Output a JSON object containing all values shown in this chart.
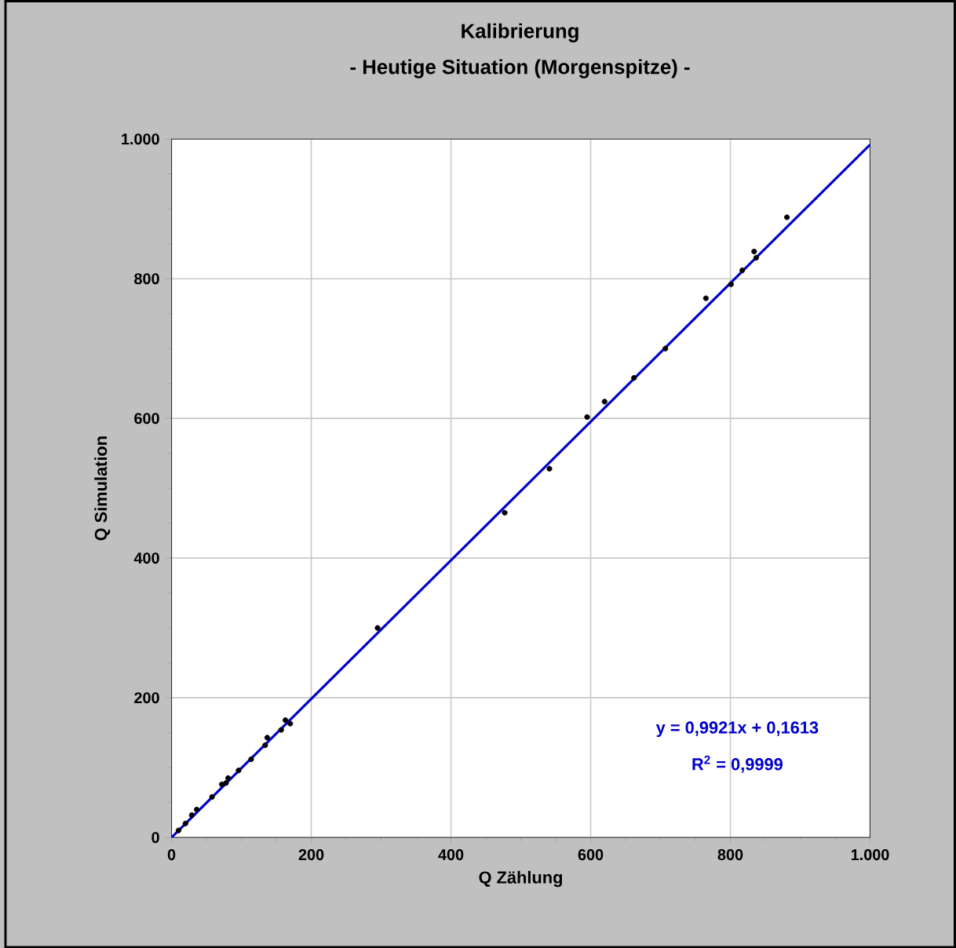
{
  "chart_data": {
    "type": "scatter",
    "title": "Kalibrierung",
    "subtitle": "- Heutige Situation (Morgenspitze) -",
    "xlabel": "Q Zählung",
    "ylabel": "Q Simulation",
    "xlim": [
      0,
      1000
    ],
    "ylim": [
      0,
      1000
    ],
    "xticks": [
      0,
      200,
      400,
      600,
      800,
      {
        "value": 1000,
        "label": "1.000"
      }
    ],
    "yticks": [
      0,
      200,
      400,
      600,
      800,
      {
        "value": 1000,
        "label": "1.000"
      }
    ],
    "grid": true,
    "annotations": [
      "y = 0,9921x + 0,1613",
      "R$^{2}$ = 0,9999"
    ],
    "series": [
      {
        "color": "#000000",
        "marker": "circle",
        "x": [
          10,
          20,
          29,
          36,
          58,
          72,
          78,
          81,
          96,
          114,
          134,
          137,
          157,
          163,
          170,
          295,
          477,
          541,
          595,
          620,
          662,
          707,
          765,
          801,
          817,
          834,
          837,
          881
        ],
        "values": [
          10,
          20,
          32,
          40,
          58,
          76,
          78,
          85,
          96,
          112,
          132,
          143,
          154,
          168,
          163,
          300,
          465,
          528,
          602,
          624,
          658,
          700,
          772,
          792,
          812,
          839,
          830,
          888
        ]
      },
      {
        "type": "line",
        "color": "#0000cc",
        "marker": "none",
        "x": [
          0,
          1000
        ],
        "values": [
          0,
          992
        ]
      }
    ]
  }
}
